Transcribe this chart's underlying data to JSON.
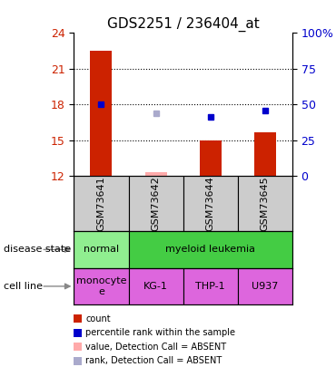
{
  "title": "GDS2251 / 236404_at",
  "samples": [
    "GSM73641",
    "GSM73642",
    "GSM73644",
    "GSM73645"
  ],
  "bar_values": [
    22.5,
    12.3,
    15.0,
    15.7
  ],
  "bar_absent": [
    false,
    true,
    false,
    false
  ],
  "percentile_values": [
    18.0,
    null,
    17.0,
    17.5
  ],
  "percentile_absent": [
    false,
    false,
    false,
    false
  ],
  "percentile_absent_value": 17.3,
  "ylim_left": [
    12,
    24
  ],
  "yticks_left": [
    12,
    15,
    18,
    21,
    24
  ],
  "ylim_right": [
    0,
    100
  ],
  "yticks_right": [
    0,
    25,
    50,
    75,
    100
  ],
  "bar_color": "#cc2200",
  "bar_absent_color": "#ffaaaa",
  "percentile_color": "#0000cc",
  "percentile_absent_color": "#aaaacc",
  "sample_box_color": "#cccccc",
  "left_label_color": "#cc2200",
  "right_label_color": "#0000cc",
  "normal_green": "#90ee90",
  "myeloid_green": "#44cc44",
  "cell_pink": "#dd66dd",
  "cell_lines": [
    "monocyte\ne",
    "KG-1",
    "THP-1",
    "U937"
  ]
}
